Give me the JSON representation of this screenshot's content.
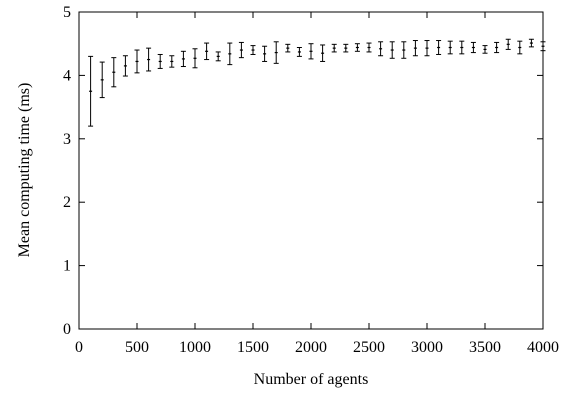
{
  "chart_data": {
    "type": "scatter",
    "xlabel": "Number of agents",
    "ylabel": "Mean computing time (ms)",
    "xlim": [
      0,
      4000
    ],
    "ylim": [
      0,
      5
    ],
    "x_ticks": [
      0,
      500,
      1000,
      1500,
      2000,
      2500,
      3000,
      3500,
      4000
    ],
    "y_ticks": [
      0,
      1,
      2,
      3,
      4,
      5
    ],
    "x_tick_labels": [
      "0",
      "500",
      "1000",
      "1500",
      "2000",
      "2500",
      "3000",
      "3500",
      "4000"
    ],
    "y_tick_labels": [
      "0",
      "1",
      "2",
      "3",
      "4",
      "5"
    ],
    "grid": false,
    "error_bars": true,
    "series": [
      {
        "x": [
          100,
          200,
          300,
          400,
          500,
          600,
          700,
          800,
          900,
          1000,
          1100,
          1200,
          1300,
          1400,
          1500,
          1600,
          1700,
          1800,
          1900,
          2000,
          2100,
          2200,
          2300,
          2400,
          2500,
          2600,
          2700,
          2800,
          2900,
          3000,
          3100,
          3200,
          3300,
          3400,
          3500,
          3600,
          3700,
          3800,
          3900,
          4000
        ],
        "y": [
          3.75,
          3.93,
          4.05,
          4.15,
          4.22,
          4.25,
          4.22,
          4.22,
          4.26,
          4.27,
          4.38,
          4.3,
          4.34,
          4.4,
          4.4,
          4.34,
          4.36,
          4.43,
          4.37,
          4.38,
          4.35,
          4.43,
          4.43,
          4.44,
          4.44,
          4.42,
          4.4,
          4.4,
          4.43,
          4.43,
          4.44,
          4.44,
          4.44,
          4.44,
          4.41,
          4.44,
          4.49,
          4.44,
          4.51,
          4.46
        ],
        "err": [
          0.55,
          0.28,
          0.23,
          0.16,
          0.18,
          0.18,
          0.11,
          0.09,
          0.12,
          0.15,
          0.13,
          0.07,
          0.17,
          0.12,
          0.07,
          0.12,
          0.17,
          0.06,
          0.07,
          0.12,
          0.13,
          0.06,
          0.06,
          0.06,
          0.07,
          0.11,
          0.13,
          0.13,
          0.12,
          0.12,
          0.11,
          0.1,
          0.1,
          0.08,
          0.06,
          0.08,
          0.08,
          0.1,
          0.06,
          0.07
        ]
      }
    ]
  }
}
